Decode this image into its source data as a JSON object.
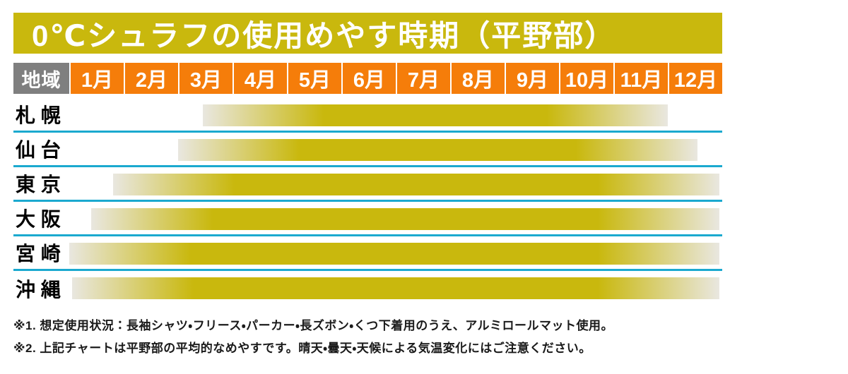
{
  "title": "0℃シュラフの使用めやす時期（平野部）",
  "header": {
    "region_label": "地域",
    "months": [
      "1月",
      "2月",
      "3月",
      "4月",
      "5月",
      "6月",
      "7月",
      "8月",
      "9月",
      "10月",
      "11月",
      "12月"
    ]
  },
  "chart_data": {
    "type": "bar",
    "orientation": "horizontal-range-gantt",
    "title": "0℃シュラフの使用めやす時期（平野部）",
    "x_axis": {
      "ticks": [
        "1月",
        "2月",
        "3月",
        "4月",
        "5月",
        "6月",
        "7月",
        "8月",
        "9月",
        "10月",
        "11月",
        "12月"
      ],
      "range": [
        1,
        13
      ]
    },
    "categories": [
      "札幌",
      "仙台",
      "東京",
      "大阪",
      "宮崎",
      "沖縄"
    ],
    "series": [
      {
        "name": "札幌",
        "label": "札 幌",
        "start_month": 3.45,
        "end_month": 12.0
      },
      {
        "name": "仙台",
        "label": "仙 台",
        "start_month": 3.0,
        "end_month": 12.55
      },
      {
        "name": "東京",
        "label": "東 京",
        "start_month": 1.8,
        "end_month": 12.95
      },
      {
        "name": "大阪",
        "label": "大 阪",
        "start_month": 1.4,
        "end_month": 12.95
      },
      {
        "name": "宮崎",
        "label": "宮 崎",
        "start_month": 1.0,
        "end_month": 12.95
      },
      {
        "name": "沖縄",
        "label": "沖 縄",
        "start_month": 1.05,
        "end_month": 12.95
      }
    ],
    "bar_style": "solid olive center fading to pale gray at both ends",
    "legend": "none",
    "grid": "cyan horizontal separator lines between rows"
  },
  "notes": [
    "※1. 想定使用状況：長袖シャツ・フリース・パーカー・長ズボン・くつ下着用のうえ、アルミロールマット使用。",
    "※2. 上記チャートは平野部の平均的なめやすです。晴天・曇天・天候による気温変化にはご注意ください。"
  ],
  "colors": {
    "olive": "#c9b80d",
    "orange": "#f57d0a",
    "header_gray": "#7f7f7f",
    "separator_cyan": "#1ba9cf",
    "bar_fade_light": "#e9e7e0",
    "text": "#1a1a1a"
  }
}
